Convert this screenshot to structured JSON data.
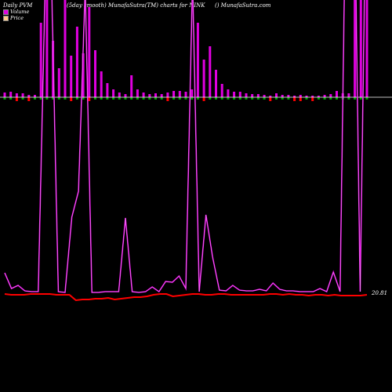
{
  "header": {
    "left": "Daily PVM",
    "center": "(5day smooth) MunafaSutra(TM) charts for NINK",
    "right": "() MunafaSutra.com"
  },
  "legend": [
    {
      "label": "Volume",
      "color": "#e000e0"
    },
    {
      "label": "Price",
      "color": "#ffcc88"
    }
  ],
  "chart_data": {
    "type": "bar",
    "title": "(5day smooth) MunafaSutra(TM) charts for NINK",
    "price_label": "20.81",
    "volume_bars": [
      {
        "v": 6,
        "c": "pos"
      },
      {
        "v": 7,
        "c": "pos"
      },
      {
        "v": 5,
        "c": "neg"
      },
      {
        "v": 5,
        "c": "pos"
      },
      {
        "v": 3,
        "c": "neg"
      },
      {
        "v": 3,
        "c": "pos"
      },
      {
        "v": 95,
        "c": "pos"
      },
      {
        "v": 130,
        "c": "pos"
      },
      {
        "v": 72,
        "c": "pos"
      },
      {
        "v": 37,
        "c": "pos"
      },
      {
        "v": 125,
        "c": "pos"
      },
      {
        "v": 53,
        "c": "neg"
      },
      {
        "v": 90,
        "c": "pos"
      },
      {
        "v": 56,
        "c": "pos"
      },
      {
        "v": 115,
        "c": "neg"
      },
      {
        "v": 60,
        "c": "pos"
      },
      {
        "v": 33,
        "c": "pos"
      },
      {
        "v": 18,
        "c": "pos"
      },
      {
        "v": 10,
        "c": "pos"
      },
      {
        "v": 6,
        "c": "pos"
      },
      {
        "v": 4,
        "c": "pos"
      },
      {
        "v": 28,
        "c": "pos"
      },
      {
        "v": 10,
        "c": "pos"
      },
      {
        "v": 6,
        "c": "pos"
      },
      {
        "v": 4,
        "c": "pos"
      },
      {
        "v": 5,
        "c": "pos"
      },
      {
        "v": 4,
        "c": "pos"
      },
      {
        "v": 6,
        "c": "neg"
      },
      {
        "v": 8,
        "c": "pos"
      },
      {
        "v": 8,
        "c": "pos"
      },
      {
        "v": 7,
        "c": "pos"
      },
      {
        "v": 10,
        "c": "pos"
      },
      {
        "v": 95,
        "c": "pos"
      },
      {
        "v": 48,
        "c": "neg"
      },
      {
        "v": 65,
        "c": "pos"
      },
      {
        "v": 35,
        "c": "pos"
      },
      {
        "v": 17,
        "c": "pos"
      },
      {
        "v": 10,
        "c": "pos"
      },
      {
        "v": 7,
        "c": "pos"
      },
      {
        "v": 7,
        "c": "pos"
      },
      {
        "v": 5,
        "c": "pos"
      },
      {
        "v": 4,
        "c": "pos"
      },
      {
        "v": 4,
        "c": "pos"
      },
      {
        "v": 3,
        "c": "pos"
      },
      {
        "v": 2,
        "c": "neg"
      },
      {
        "v": 5,
        "c": "pos"
      },
      {
        "v": 3,
        "c": "pos"
      },
      {
        "v": 3,
        "c": "pos"
      },
      {
        "v": 2,
        "c": "neg"
      },
      {
        "v": 3,
        "c": "neg"
      },
      {
        "v": 2,
        "c": "pos"
      },
      {
        "v": 2,
        "c": "neg"
      },
      {
        "v": 2,
        "c": "pos"
      },
      {
        "v": 3,
        "c": "pos"
      },
      {
        "v": 4,
        "c": "pos"
      },
      {
        "v": 8,
        "c": "pos"
      },
      {
        "v": 5,
        "c": "pos"
      },
      {
        "v": 5,
        "c": "pos"
      },
      {
        "v": 130,
        "c": "pos"
      },
      {
        "v": 130,
        "c": "pos"
      },
      {
        "v": 130,
        "c": "pos"
      }
    ],
    "volume_line": [
      26,
      6,
      10,
      3,
      2,
      2,
      380,
      390,
      2,
      1,
      97,
      130,
      390,
      1,
      1,
      2,
      2,
      2,
      96,
      2,
      1,
      2,
      8,
      2,
      15,
      14,
      22,
      6,
      400,
      2,
      100,
      46,
      4,
      3,
      10,
      4,
      3,
      3,
      5,
      3,
      13,
      5,
      3,
      3,
      2,
      2,
      2,
      6,
      2,
      27,
      2,
      600,
      600,
      2,
      600
    ],
    "price_line": [
      1,
      0,
      0,
      0,
      1,
      1,
      1,
      1,
      0,
      0,
      0,
      -7,
      -6,
      -6,
      -5,
      -5,
      -4,
      -6,
      -5,
      -4,
      -3,
      -3,
      -2,
      0,
      1,
      1,
      -2,
      -1,
      0,
      1,
      1,
      0,
      0,
      1,
      1,
      0,
      0,
      0,
      0,
      0,
      0,
      1,
      1,
      0,
      1,
      0,
      0,
      -1,
      0,
      0,
      -1,
      0,
      -1,
      -1,
      -1,
      -1,
      0
    ],
    "colors": {
      "volume_bar": "#e000e0",
      "pos_base": "#00a000",
      "neg_base": "#ff0000",
      "volume_line": "#e000e0",
      "price_line": "#ff0000",
      "midline": "#ffffff"
    }
  }
}
